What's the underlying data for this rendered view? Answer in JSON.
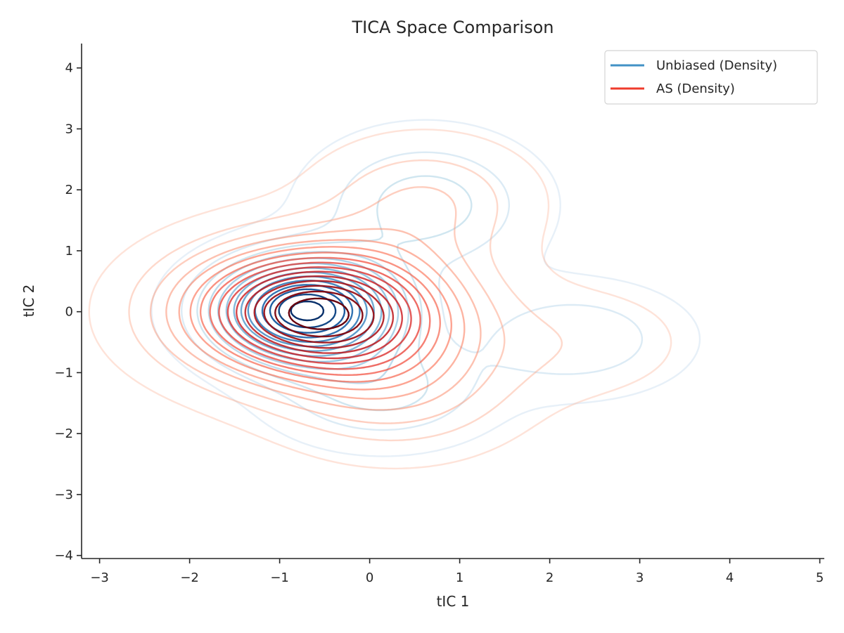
{
  "chart_data": {
    "type": "contour",
    "title": "TICA Space Comparison",
    "xlabel": "tIC 1",
    "ylabel": "tIC 2",
    "xlim": [
      -3.2,
      5.05
    ],
    "ylim": [
      -4.05,
      4.4
    ],
    "x_ticks": [
      -3,
      -2,
      -1,
      0,
      1,
      2,
      3,
      4,
      5
    ],
    "y_ticks": [
      -4,
      -3,
      -2,
      -1,
      0,
      1,
      2,
      3,
      4
    ],
    "x_tick_labels": [
      "−3",
      "−2",
      "−1",
      "0",
      "1",
      "2",
      "3",
      "4",
      "5"
    ],
    "y_tick_labels": [
      "−4",
      "−3",
      "−2",
      "−1",
      "0",
      "1",
      "2",
      "3",
      "4"
    ],
    "grid": false,
    "legend_position": "top-right",
    "series": [
      {
        "name": "Unbiased (Density)",
        "color": "#4292c6",
        "colormap": "Blues",
        "modes": [
          {
            "center": [
              -0.7,
              0.02
            ],
            "sigma": [
              0.65,
              0.55
            ],
            "weight": 1.0
          },
          {
            "center": [
              0.62,
              1.75
            ],
            "sigma": [
              0.75,
              0.7
            ],
            "weight": 0.22
          },
          {
            "center": [
              0.15,
              -1.3
            ],
            "sigma": [
              0.75,
              0.55
            ],
            "weight": 0.2
          },
          {
            "center": [
              2.27,
              -0.45
            ],
            "sigma": [
              0.75,
              0.55
            ],
            "weight": 0.17
          }
        ]
      },
      {
        "name": "AS (Density)",
        "color": "#ef3b2c",
        "colormap": "Reds",
        "modes": [
          {
            "center": [
              -0.6,
              0.0
            ],
            "sigma": [
              0.95,
              0.7
            ],
            "weight": 1.0
          },
          {
            "center": [
              0.6,
              1.8
            ],
            "sigma": [
              0.75,
              0.65
            ],
            "weight": 0.16
          },
          {
            "center": [
              0.3,
              -1.2
            ],
            "sigma": [
              0.85,
              0.7
            ],
            "weight": 0.2
          },
          {
            "center": [
              2.3,
              -0.5
            ],
            "sigma": [
              0.8,
              0.6
            ],
            "weight": 0.07
          }
        ]
      }
    ]
  }
}
